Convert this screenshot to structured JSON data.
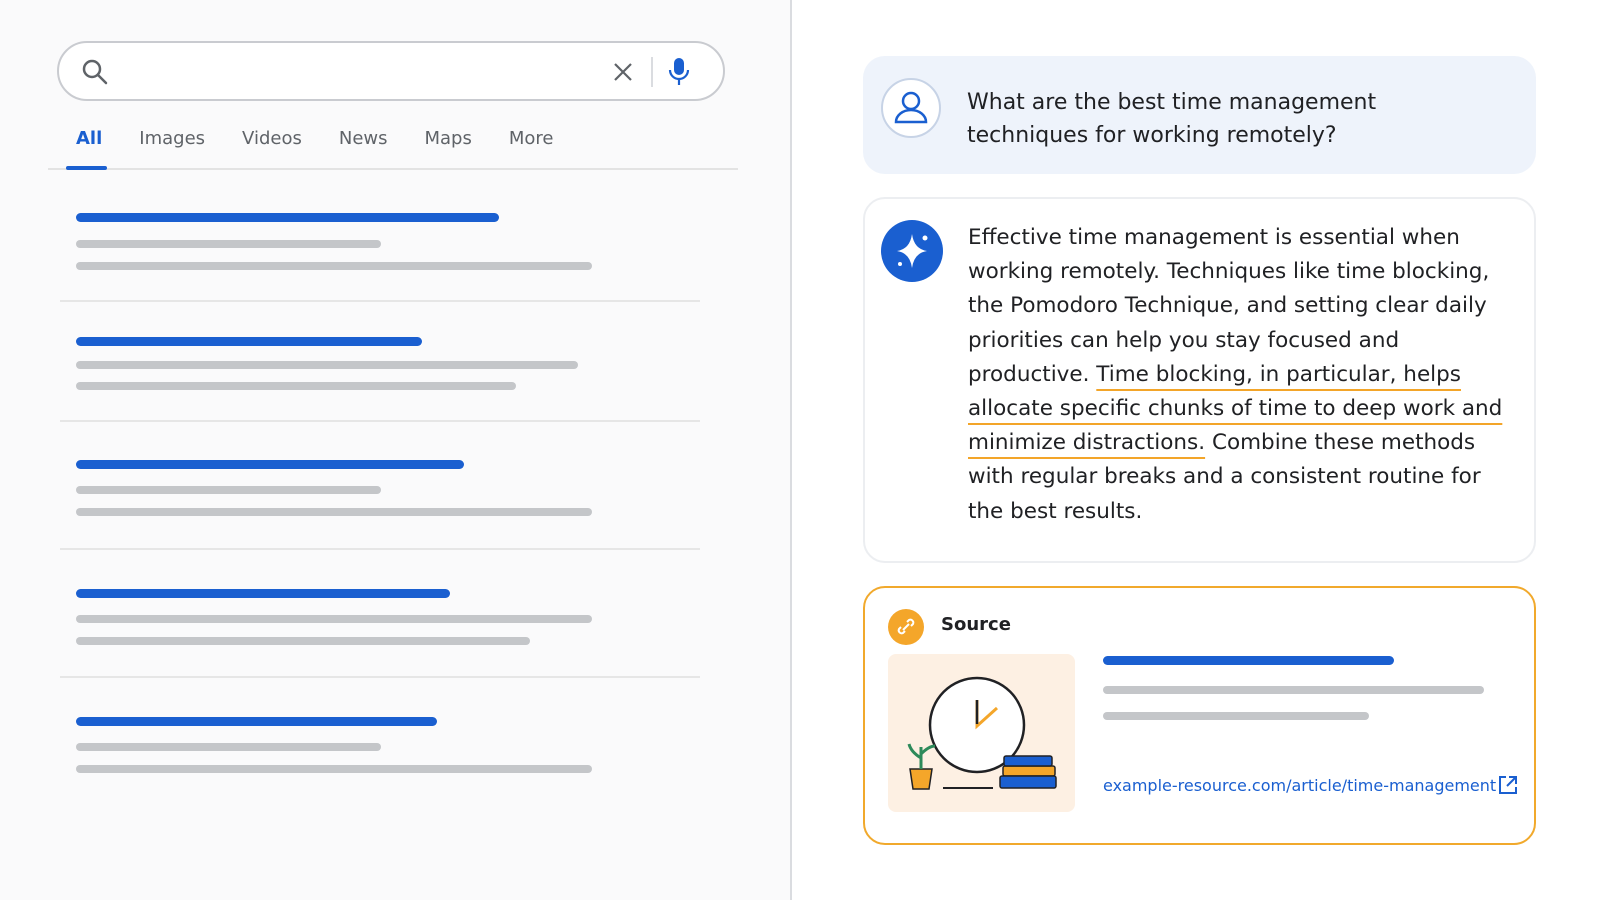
{
  "search": {
    "tabs": [
      "All",
      "Images",
      "Videos",
      "News",
      "Maps",
      "More"
    ]
  },
  "query": "What are the best time management techniques for working remotely?",
  "answer": {
    "intro": "Effective time management is essential when working remotely. Techniques like time blocking, the Pomodoro Technique, and setting clear daily priorities can help you stay focused and productive.",
    "highlight": "Time blocking, in particular, helps allocate specific chunks of time to deep work and minimize distractions.",
    "conclusion": "Combine these methods with regular breaks and a consistent routine for the best results."
  },
  "source": {
    "label": "Source",
    "url": "example-resource.com/article/time-management"
  }
}
